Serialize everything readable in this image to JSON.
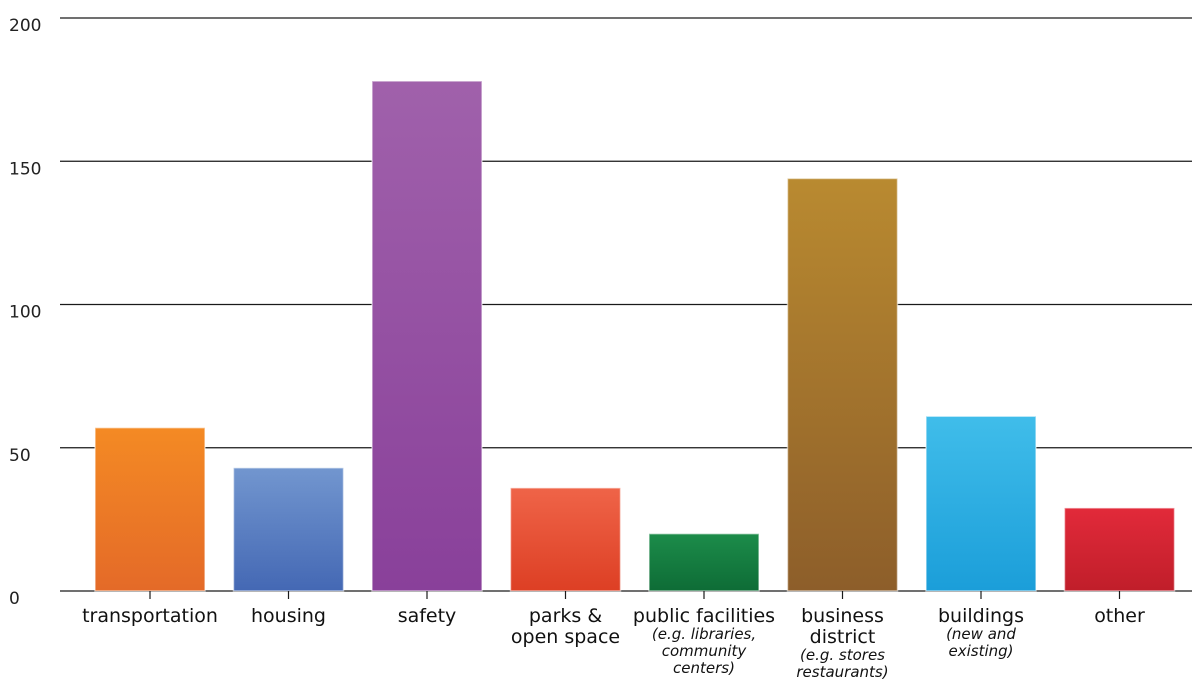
{
  "chart_data": {
    "type": "bar",
    "title": "",
    "xlabel": "",
    "ylabel": "",
    "ylim": [
      0,
      200
    ],
    "yticks": [
      0,
      50,
      100,
      150,
      200
    ],
    "grid": true,
    "categories": [
      {
        "label": [
          "transportation"
        ],
        "sublabel": []
      },
      {
        "label": [
          "housing"
        ],
        "sublabel": []
      },
      {
        "label": [
          "safety"
        ],
        "sublabel": []
      },
      {
        "label": [
          "parks &",
          "open space"
        ],
        "sublabel": []
      },
      {
        "label": [
          "public facilities"
        ],
        "sublabel": [
          "(e.g. libraries,",
          "community",
          "centers)"
        ]
      },
      {
        "label": [
          "business",
          "district"
        ],
        "sublabel": [
          "(e.g. stores",
          "restaurants)"
        ]
      },
      {
        "label": [
          "buildings"
        ],
        "sublabel": [
          "(new and",
          "existing)"
        ]
      },
      {
        "label": [
          "other"
        ],
        "sublabel": []
      }
    ],
    "values": [
      57,
      43,
      178,
      36,
      20,
      144,
      61,
      29
    ],
    "colors": [
      [
        "#f48a24",
        "#e46a28"
      ],
      [
        "#7296cf",
        "#4468b4"
      ],
      [
        "#a061ab",
        "#89409a"
      ],
      [
        "#ef6448",
        "#dd3f24"
      ],
      [
        "#1c8c4a",
        "#0e6c36"
      ],
      [
        "#b98a30",
        "#8d5e2a"
      ],
      [
        "#40bdea",
        "#1b9ed9"
      ],
      [
        "#e22a3a",
        "#c01e2a"
      ]
    ]
  }
}
